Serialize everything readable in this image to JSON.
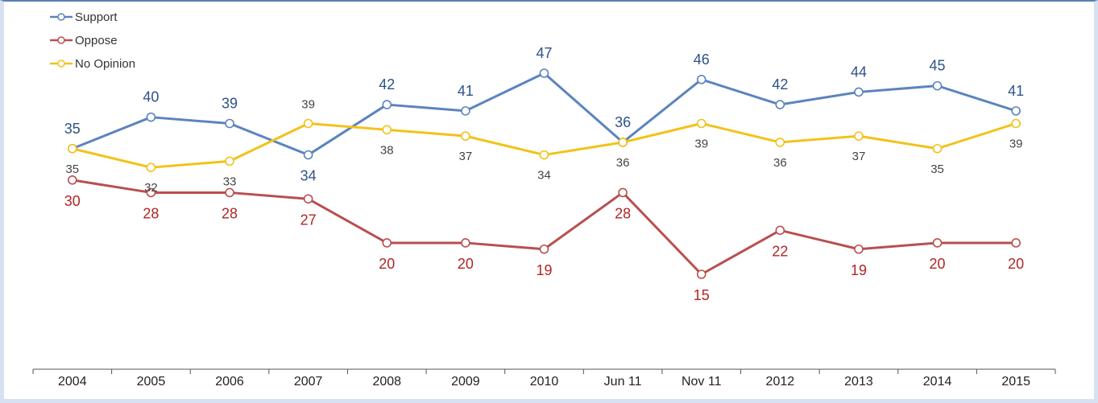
{
  "chart_data": {
    "type": "line",
    "title": "",
    "xlabel": "",
    "ylabel": "",
    "categories": [
      "2004",
      "2005",
      "2006",
      "2007",
      "2008",
      "2009",
      "2010",
      "Jun 11",
      "Nov 11",
      "2012",
      "2013",
      "2014",
      "2015"
    ],
    "series": [
      {
        "name": "Support",
        "color": "#5b84bf",
        "label_color": "#2d5288",
        "values": [
          35,
          40,
          39,
          34,
          42,
          41,
          47,
          36,
          46,
          42,
          44,
          45,
          41
        ]
      },
      {
        "name": "Oppose",
        "color": "#b94f4f",
        "label_color": "#b32424",
        "values": [
          30,
          28,
          28,
          27,
          20,
          20,
          19,
          28,
          15,
          22,
          19,
          20,
          20
        ]
      },
      {
        "name": "No Opinion",
        "color": "#f2c21a",
        "label_color": "#444444",
        "values": [
          35,
          32,
          33,
          39,
          38,
          37,
          34,
          36,
          39,
          36,
          37,
          35,
          39
        ]
      }
    ],
    "legend_position": "top-left",
    "grid": false
  }
}
